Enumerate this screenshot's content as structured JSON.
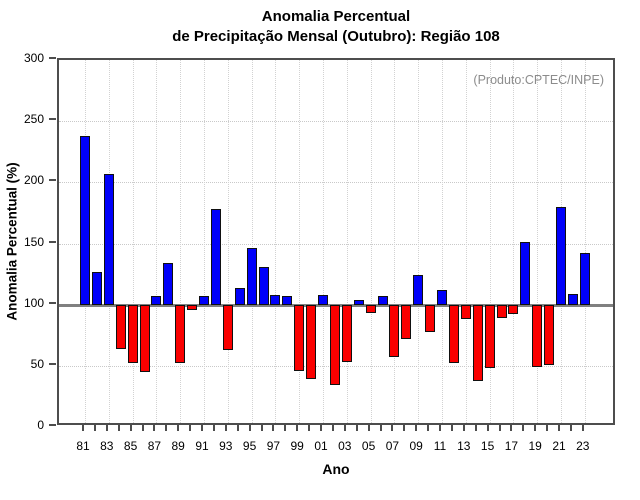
{
  "title": {
    "line1": "Anomalia Percentual",
    "line2": "de Precipitação Mensal (Outubro): Região 108"
  },
  "annotation": "(Produto:CPTEC/INPE)",
  "axes": {
    "y_label": "Anomalia Percentual (%)",
    "x_label": "Ano",
    "y_tick_labels": [
      "0",
      "50",
      "100",
      "150",
      "200",
      "250",
      "300"
    ],
    "x_tick_labels": [
      "81",
      "83",
      "85",
      "87",
      "89",
      "91",
      "93",
      "95",
      "97",
      "99",
      "01",
      "03",
      "05",
      "07",
      "09",
      "11",
      "13",
      "15",
      "17",
      "19",
      "21",
      "23"
    ]
  },
  "chart_data": {
    "type": "bar",
    "title": "Anomalia Percentual de Precipitação Mensal (Outubro): Região 108",
    "xlabel": "Ano",
    "ylabel": "Anomalia Percentual (%)",
    "ylim": [
      0,
      300
    ],
    "y_tick_step": 50,
    "baseline": 100,
    "grid": true,
    "legend": "none",
    "years": [
      1981,
      1982,
      1983,
      1984,
      1985,
      1986,
      1987,
      1988,
      1989,
      1990,
      1991,
      1992,
      1993,
      1994,
      1995,
      1996,
      1997,
      1998,
      1999,
      2000,
      2001,
      2002,
      2003,
      2004,
      2005,
      2006,
      2007,
      2008,
      2009,
      2010,
      2011,
      2012,
      2013,
      2014,
      2015,
      2016,
      2017,
      2018,
      2019,
      2020,
      2021,
      2022,
      2023
    ],
    "values": [
      238,
      127,
      207,
      64,
      52,
      45,
      107,
      134,
      52,
      96,
      107,
      178,
      63,
      114,
      146,
      131,
      108,
      107,
      46,
      39,
      108,
      34,
      53,
      104,
      93,
      107,
      57,
      72,
      124,
      78,
      112,
      52,
      88,
      38,
      48,
      89,
      92,
      151,
      49,
      51,
      180,
      109,
      142
    ],
    "colors": {
      "above_baseline": "#fa0000_is_red_below; see mapping",
      "above": "#0000fa",
      "below": "#fa0000",
      "baseline_line": "#808080",
      "frame": "#4d4d4d",
      "annotation_text": "#8c8c8c"
    }
  }
}
